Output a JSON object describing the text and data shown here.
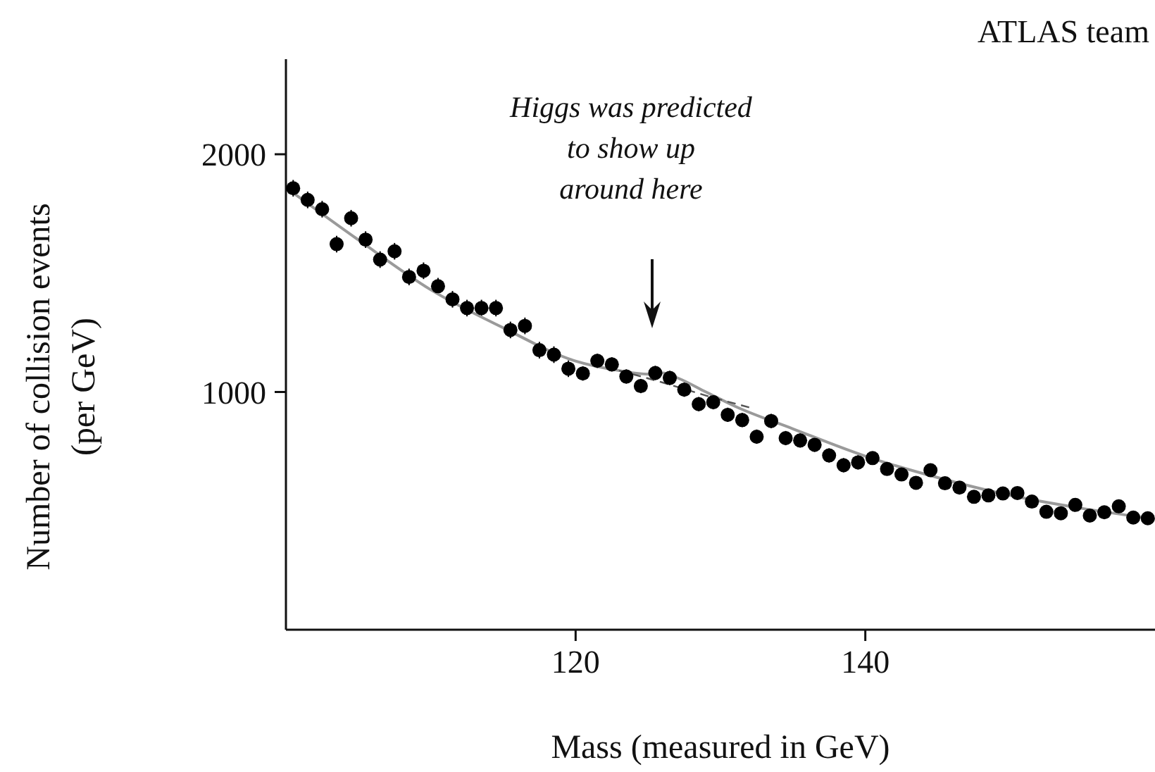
{
  "chart_data": {
    "type": "scatter",
    "xlabel": "Mass (measured in GeV)",
    "ylabel": "Number of collision events\n(per GeV)",
    "xlim": [
      100,
      160
    ],
    "xticks": [
      120,
      140
    ],
    "ylim": [
      0,
      2400
    ],
    "yticks": [
      1000,
      2000
    ],
    "series": [
      {
        "marker": "circle",
        "color": "#000000",
        "x": [
          100.5,
          101.5,
          102.5,
          103.5,
          104.5,
          105.5,
          106.5,
          107.5,
          108.5,
          109.5,
          110.5,
          111.5,
          112.5,
          113.5,
          114.5,
          115.5,
          116.5,
          117.5,
          118.5,
          119.5,
          120.5,
          121.5,
          122.5,
          123.5,
          124.5,
          125.5,
          126.5,
          127.5,
          128.5,
          129.5,
          130.5,
          131.5,
          132.5,
          133.5,
          134.5,
          135.5,
          136.5,
          137.5,
          138.5,
          139.5,
          140.5,
          141.5,
          142.5,
          143.5,
          144.5,
          145.5,
          146.5,
          147.5,
          148.5,
          149.5,
          150.5,
          151.5,
          152.5,
          153.5,
          154.5,
          155.5,
          156.5,
          157.5,
          158.5,
          159.5
        ],
        "values": [
          1857,
          1808,
          1769,
          1622,
          1731,
          1641,
          1557,
          1592,
          1484,
          1510,
          1445,
          1390,
          1353,
          1353,
          1353,
          1261,
          1278,
          1176,
          1157,
          1098,
          1078,
          1131,
          1116,
          1065,
          1025,
          1080,
          1059,
          1010,
          949,
          957,
          904,
          882,
          812,
          878,
          806,
          796,
          778,
          733,
          692,
          704,
          722,
          676,
          653,
          618,
          671,
          616,
          598,
          559,
          565,
          573,
          575,
          539,
          496,
          490,
          525,
          480,
          494,
          519,
          472,
          469
        ],
        "errors": [
          35,
          35,
          35,
          35,
          35,
          35,
          35,
          35,
          35,
          35,
          35,
          35,
          35,
          35,
          35,
          35,
          35,
          35,
          35,
          35,
          30,
          30,
          30,
          30,
          30,
          30,
          30,
          30,
          30,
          30,
          30,
          30,
          30,
          30,
          30,
          30,
          30,
          30,
          30,
          30,
          25,
          25,
          25,
          25,
          25,
          25,
          25,
          25,
          25,
          25,
          25,
          25,
          25,
          25,
          25,
          25,
          25,
          25,
          25,
          25
        ]
      },
      {
        "type": "line",
        "color": "#9a9a9a",
        "x": [
          100,
          105,
          110,
          115,
          120,
          123,
          125,
          126,
          127,
          129,
          131,
          135,
          140,
          145,
          150,
          155,
          160
        ],
        "values": [
          1860,
          1640,
          1430,
          1270,
          1130,
          1090,
          1075,
          1080,
          1060,
          1000,
          940,
          845,
          730,
          640,
          565,
          510,
          465
        ]
      },
      {
        "type": "line",
        "color": "#555555",
        "line_style": "dashed",
        "x": [
          123,
          126,
          129,
          132
        ],
        "values": [
          1090,
          1040,
          985,
          935
        ]
      }
    ],
    "annotations": [
      "Higgs was predicted\nto show up\naround here",
      "ATLAS team"
    ]
  }
}
